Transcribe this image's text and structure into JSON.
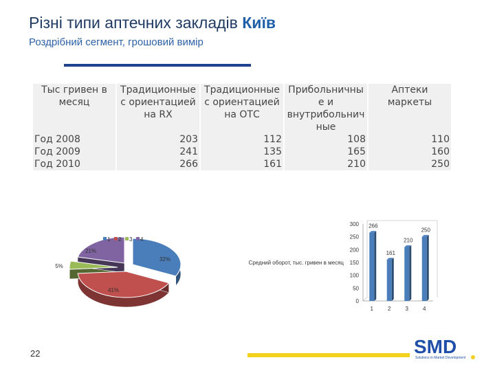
{
  "header": {
    "title_main": "Різні типи аптечних закладів",
    "title_city": "Київ",
    "subtitle": "Роздрібний сегмент, грошовий вимір"
  },
  "table": {
    "corner": "Тыс гривен в\nмесяц",
    "columns": [
      "Традиционные\nс ориентацией\nна RX",
      "Традиционные\nс ориентацией\nна ОТС",
      "Прибольничны\nе и\nвнутрибольнич\nные",
      "Аптеки\nмаркеты"
    ],
    "rows": [
      {
        "label": "Год 2008",
        "values": [
          "203",
          "112",
          "108",
          "110"
        ]
      },
      {
        "label": "Год 2009",
        "values": [
          "241",
          "135",
          "165",
          "160"
        ]
      },
      {
        "label": "Год 2010",
        "values": [
          "266",
          "161",
          "210",
          "250"
        ]
      }
    ]
  },
  "chart_data": [
    {
      "type": "pie",
      "legend": [
        "1",
        "2",
        "3",
        "4"
      ],
      "values": [
        32,
        41,
        5,
        21
      ],
      "labels": [
        "32%",
        "41%",
        "5%",
        "21%"
      ],
      "colors": [
        "#4a7ebb",
        "#c0504d",
        "#9bbb59",
        "#8064a2"
      ]
    },
    {
      "type": "bar",
      "ylabel": "Средний оборот, тыс. гривен в месяц",
      "categories": [
        "1",
        "2",
        "3",
        "4"
      ],
      "values": [
        266,
        161,
        210,
        250
      ],
      "labels": [
        "266",
        "161",
        "210",
        "250"
      ],
      "ylim": [
        0,
        300
      ],
      "yticks": [
        "0",
        "50",
        "100",
        "150",
        "200",
        "250",
        "300"
      ],
      "color": "#4a7ebb"
    }
  ],
  "footer": {
    "page_number": "22",
    "logo_text": "SMD",
    "logo_tagline": "Solutions in Market Development"
  }
}
